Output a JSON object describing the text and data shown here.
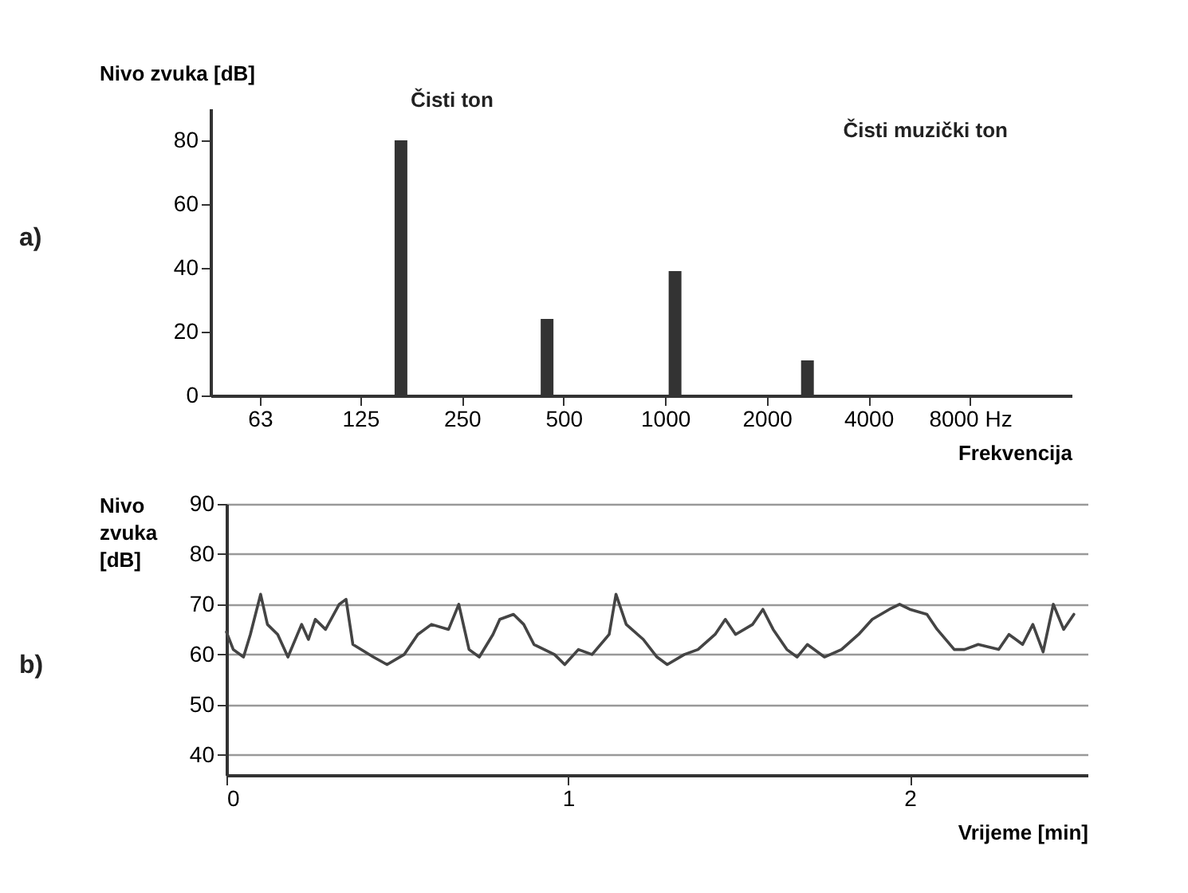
{
  "chart_data": [
    {
      "type": "bar",
      "x": [
        165,
        447,
        1070,
        2640
      ],
      "values": [
        80,
        24,
        39,
        11
      ],
      "color": "#333333",
      "log": "x",
      "xlim": [
        45,
        16000
      ],
      "ylim": [
        0,
        90
      ],
      "xticks": [
        63,
        125,
        250,
        500,
        1000,
        2000,
        4000,
        {
          "value": 8000,
          "label": "8000 Hz"
        }
      ],
      "yticks": [
        0,
        20,
        40,
        60,
        80
      ],
      "xlabel": "Frekvencija",
      "ylabel": "Nivo zvuka [dB]",
      "annotations": [
        "a)",
        {
          "text": "Čisti ton",
          "x": 165,
          "y": 80
        },
        "Čisti muzički ton"
      ]
    },
    {
      "type": "line",
      "color": "#444444",
      "xlim": [
        0,
        2.52
      ],
      "ylim": [
        36,
        90
      ],
      "xticks": [
        0,
        1,
        2
      ],
      "yticks": [
        40,
        50,
        60,
        70,
        80,
        90
      ],
      "grid": "y",
      "xlabel": "Vrijeme [min]",
      "ylabel": "Nivo zvuka [dB]",
      "annotations": [
        "b)"
      ],
      "x": [
        0,
        0.02,
        0.05,
        0.07,
        0.1,
        0.12,
        0.15,
        0.18,
        0.22,
        0.24,
        0.26,
        0.29,
        0.33,
        0.35,
        0.37,
        0.43,
        0.47,
        0.52,
        0.56,
        0.6,
        0.65,
        0.68,
        0.71,
        0.74,
        0.78,
        0.8,
        0.84,
        0.87,
        0.9,
        0.96,
        0.99,
        1.03,
        1.07,
        1.12,
        1.14,
        1.17,
        1.22,
        1.26,
        1.29,
        1.34,
        1.38,
        1.43,
        1.46,
        1.49,
        1.54,
        1.57,
        1.6,
        1.64,
        1.67,
        1.7,
        1.75,
        1.8,
        1.85,
        1.89,
        1.94,
        1.97,
        2,
        2.05,
        2.08,
        2.13,
        2.16,
        2.2,
        2.26,
        2.29,
        2.33,
        2.36,
        2.39,
        2.42,
        2.45,
        2.48
      ],
      "values": [
        64.5,
        61,
        59.5,
        64,
        72,
        66,
        64,
        59.5,
        66,
        63,
        67,
        65,
        70,
        71,
        62,
        59.5,
        58,
        60,
        64,
        66,
        65,
        70,
        61,
        59.5,
        64,
        67,
        68,
        66,
        62,
        60,
        58,
        61,
        60,
        64,
        72,
        66,
        63,
        59.5,
        58,
        60,
        61,
        64,
        67,
        64,
        66,
        69,
        65,
        61,
        59.5,
        62,
        59.5,
        61,
        64,
        67,
        69,
        70,
        69,
        68,
        65,
        61,
        61,
        62,
        61,
        64,
        62,
        66,
        60.5,
        70,
        65,
        68
      ]
    }
  ]
}
